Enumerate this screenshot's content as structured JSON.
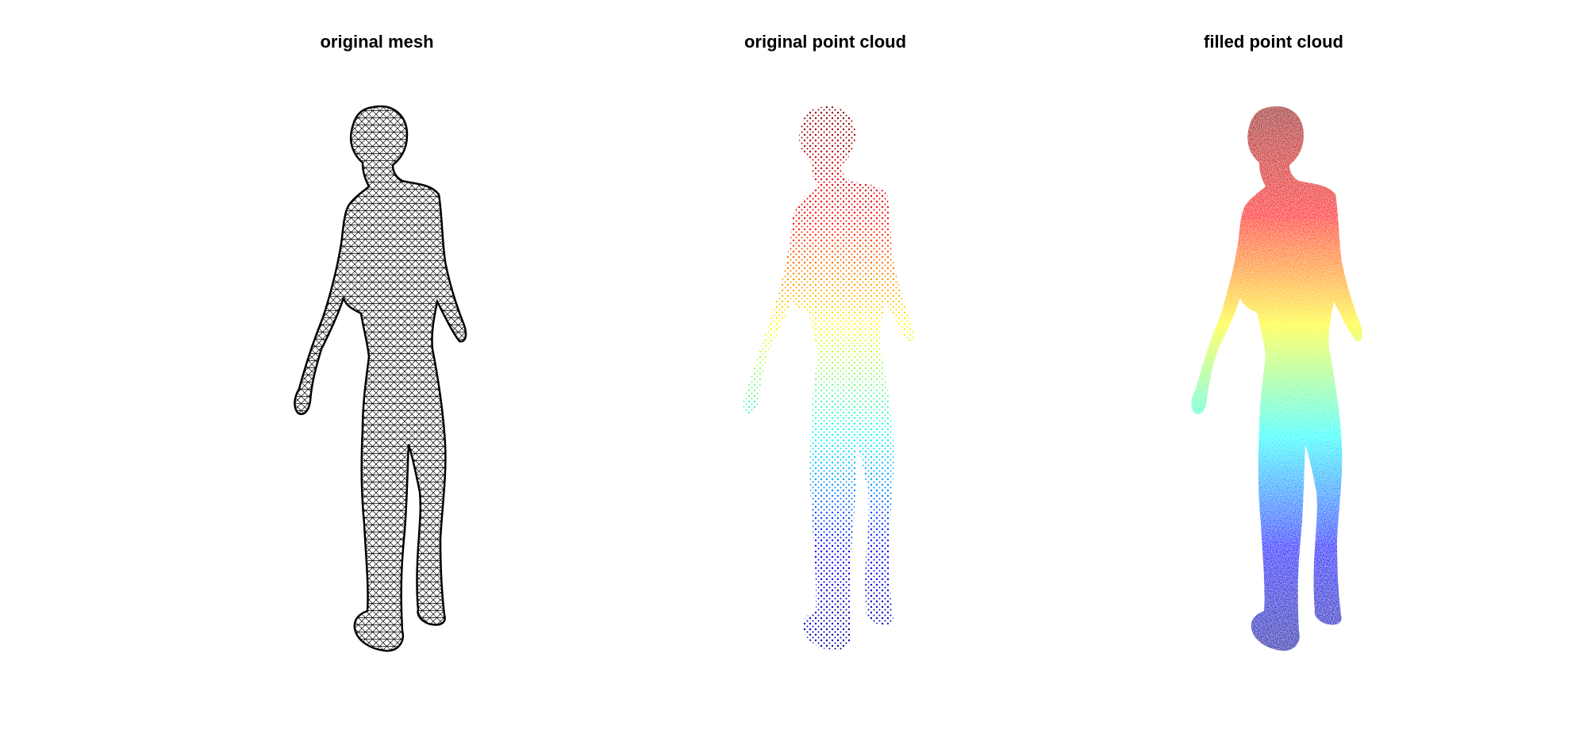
{
  "panels": [
    {
      "title": "original mesh",
      "render": "wireframe",
      "color": "#000000"
    },
    {
      "title": "original point cloud",
      "render": "sparse-points",
      "colormap": "jet"
    },
    {
      "title": "filled point cloud",
      "render": "dense-points",
      "colormap": "jet"
    }
  ],
  "colormap_stops": [
    "#00008f",
    "#0000ff",
    "#00ffff",
    "#ffff00",
    "#ff0000",
    "#800000"
  ]
}
